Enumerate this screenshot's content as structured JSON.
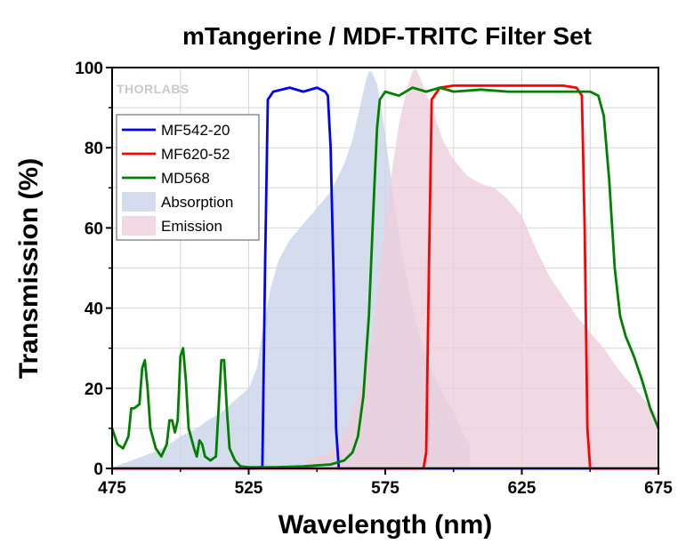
{
  "chart_data": {
    "type": "line",
    "title": "mTangerine / MDF-TRITC Filter Set",
    "xlabel": "Wavelength (nm)",
    "ylabel": "Transmission (%)",
    "xlim": [
      475,
      675
    ],
    "ylim": [
      0,
      100
    ],
    "xticks": [
      475,
      525,
      575,
      625,
      675
    ],
    "yticks": [
      0,
      20,
      40,
      60,
      80,
      100
    ],
    "logo": "THORLABS",
    "grid": true,
    "legend_position": "upper-left",
    "series": [
      {
        "name": "Absorption",
        "kind": "area",
        "color": "#c9d3ea",
        "points": [
          [
            475,
            0
          ],
          [
            478,
            1
          ],
          [
            482,
            2
          ],
          [
            486,
            3
          ],
          [
            490,
            4
          ],
          [
            496,
            6
          ],
          [
            500,
            8
          ],
          [
            506,
            10
          ],
          [
            510,
            12
          ],
          [
            515,
            14
          ],
          [
            520,
            17
          ],
          [
            525,
            20
          ],
          [
            528,
            25
          ],
          [
            530,
            34
          ],
          [
            533,
            45
          ],
          [
            536,
            52
          ],
          [
            540,
            57
          ],
          [
            545,
            61
          ],
          [
            550,
            65
          ],
          [
            555,
            69
          ],
          [
            560,
            76
          ],
          [
            563,
            82
          ],
          [
            566,
            91
          ],
          [
            568,
            97
          ],
          [
            569,
            99
          ],
          [
            570,
            99
          ],
          [
            572,
            96
          ],
          [
            574,
            88
          ],
          [
            576,
            78
          ],
          [
            578,
            68
          ],
          [
            580,
            58
          ],
          [
            583,
            47
          ],
          [
            586,
            37
          ],
          [
            590,
            28
          ],
          [
            595,
            20
          ],
          [
            600,
            14
          ],
          [
            604,
            8
          ],
          [
            606,
            6
          ],
          [
            606,
            0
          ]
        ]
      },
      {
        "name": "Emission",
        "kind": "area",
        "color": "#ecd0dc",
        "points": [
          [
            546,
            0
          ],
          [
            546,
            2
          ],
          [
            550,
            3
          ],
          [
            554,
            4
          ],
          [
            558,
            6
          ],
          [
            562,
            12
          ],
          [
            566,
            20
          ],
          [
            570,
            32
          ],
          [
            574,
            55
          ],
          [
            577,
            72
          ],
          [
            580,
            86
          ],
          [
            583,
            95
          ],
          [
            585,
            99
          ],
          [
            586,
            100
          ],
          [
            588,
            97
          ],
          [
            592,
            90
          ],
          [
            596,
            82
          ],
          [
            600,
            77
          ],
          [
            605,
            73
          ],
          [
            610,
            71
          ],
          [
            615,
            70
          ],
          [
            620,
            67
          ],
          [
            625,
            63
          ],
          [
            630,
            55
          ],
          [
            635,
            48
          ],
          [
            640,
            43
          ],
          [
            645,
            38
          ],
          [
            650,
            34
          ],
          [
            655,
            30
          ],
          [
            660,
            25
          ],
          [
            665,
            21
          ],
          [
            670,
            17
          ],
          [
            675,
            13
          ],
          [
            675,
            0
          ]
        ]
      },
      {
        "name": "MF542-20",
        "kind": "line",
        "color": "#0000ff",
        "points": [
          [
            475,
            0
          ],
          [
            528,
            0
          ],
          [
            530,
            0.5
          ],
          [
            531,
            50
          ],
          [
            532,
            92
          ],
          [
            534,
            94
          ],
          [
            540,
            95
          ],
          [
            545,
            94
          ],
          [
            550,
            95
          ],
          [
            553,
            94
          ],
          [
            554,
            93
          ],
          [
            555,
            80
          ],
          [
            556,
            50
          ],
          [
            557,
            10
          ],
          [
            558,
            0
          ],
          [
            675,
            0
          ]
        ]
      },
      {
        "name": "MF620-52",
        "kind": "line",
        "color": "#ff0000",
        "points": [
          [
            475,
            0
          ],
          [
            589,
            0
          ],
          [
            590,
            4
          ],
          [
            591,
            50
          ],
          [
            592,
            92
          ],
          [
            595,
            95
          ],
          [
            600,
            95.5
          ],
          [
            610,
            95.5
          ],
          [
            620,
            95.5
          ],
          [
            630,
            95.5
          ],
          [
            640,
            95.5
          ],
          [
            645,
            95
          ],
          [
            647,
            93
          ],
          [
            648,
            60
          ],
          [
            649,
            10
          ],
          [
            650,
            0
          ],
          [
            675,
            0
          ]
        ]
      },
      {
        "name": "MD568",
        "kind": "line",
        "color": "#008000",
        "points": [
          [
            475,
            10
          ],
          [
            477,
            6
          ],
          [
            479,
            5
          ],
          [
            481,
            8
          ],
          [
            482,
            15
          ],
          [
            483,
            15
          ],
          [
            485,
            16
          ],
          [
            486,
            25
          ],
          [
            487,
            27
          ],
          [
            488,
            20
          ],
          [
            489,
            10
          ],
          [
            491,
            5
          ],
          [
            493,
            3
          ],
          [
            495,
            6
          ],
          [
            496,
            12
          ],
          [
            497,
            12
          ],
          [
            498,
            9
          ],
          [
            499,
            12
          ],
          [
            500,
            28
          ],
          [
            501,
            30
          ],
          [
            502,
            22
          ],
          [
            503,
            10
          ],
          [
            505,
            5
          ],
          [
            506,
            3
          ],
          [
            507,
            7
          ],
          [
            508,
            6
          ],
          [
            509,
            3
          ],
          [
            511,
            2
          ],
          [
            513,
            3
          ],
          [
            514,
            15
          ],
          [
            515,
            27
          ],
          [
            516,
            27
          ],
          [
            517,
            15
          ],
          [
            518,
            5
          ],
          [
            520,
            2
          ],
          [
            522,
            0.5
          ],
          [
            525,
            0.3
          ],
          [
            535,
            0.3
          ],
          [
            545,
            0.5
          ],
          [
            555,
            1
          ],
          [
            560,
            2
          ],
          [
            563,
            4
          ],
          [
            565,
            8
          ],
          [
            567,
            18
          ],
          [
            569,
            38
          ],
          [
            571,
            70
          ],
          [
            572,
            85
          ],
          [
            573,
            92
          ],
          [
            575,
            94
          ],
          [
            580,
            93
          ],
          [
            585,
            95
          ],
          [
            590,
            94
          ],
          [
            595,
            95
          ],
          [
            600,
            94
          ],
          [
            610,
            94.5
          ],
          [
            620,
            94
          ],
          [
            630,
            94
          ],
          [
            640,
            94
          ],
          [
            645,
            94
          ],
          [
            650,
            94
          ],
          [
            653,
            93
          ],
          [
            655,
            88
          ],
          [
            657,
            72
          ],
          [
            659,
            50
          ],
          [
            661,
            38
          ],
          [
            663,
            33
          ],
          [
            666,
            28
          ],
          [
            669,
            22
          ],
          [
            672,
            15
          ],
          [
            675,
            10
          ]
        ]
      }
    ]
  }
}
